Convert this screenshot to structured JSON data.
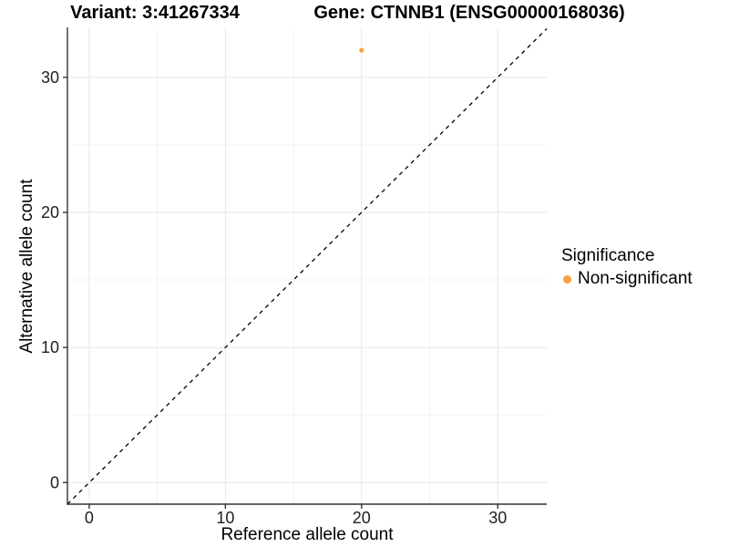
{
  "titles": {
    "variant": "Variant: 3:41267334",
    "gene": "Gene: CTNNB1 (ENSG00000168036)"
  },
  "chart_data": {
    "type": "scatter",
    "title": "Variant: 3:41267334  /  Gene: CTNNB1 (ENSG00000168036)",
    "xlabel": "Reference allele count",
    "ylabel": "Alternative allele count",
    "points": [
      {
        "x": 20,
        "y": 32,
        "series": "Non-significant"
      }
    ],
    "reference_line": {
      "kind": "identity",
      "style": "dashed",
      "from": -1.6,
      "to": 33.6
    },
    "xlim": [
      -1.6,
      33.6
    ],
    "ylim": [
      -1.6,
      33.7
    ],
    "x_ticks": [
      0,
      10,
      20,
      30
    ],
    "y_ticks": [
      0,
      10,
      20,
      30
    ],
    "x_minor_ticks": [
      5,
      15,
      25
    ],
    "y_minor_ticks": [
      5,
      15,
      25
    ],
    "grid": "on",
    "legend": {
      "title": "Significance",
      "position": "right",
      "items": [
        {
          "label": "Non-significant",
          "color": "#F9A03F"
        }
      ]
    },
    "colors": {
      "point": "#F9A03F",
      "grid_major": "#E8E8E8",
      "grid_minor": "#F3F3F3",
      "axis_line": "#333333",
      "tick_label": "#1F1F1F",
      "reference_line": "#000000",
      "background": "#FFFFFF"
    },
    "point_radius": 2.6,
    "legend_dot_radius": 4.5
  }
}
